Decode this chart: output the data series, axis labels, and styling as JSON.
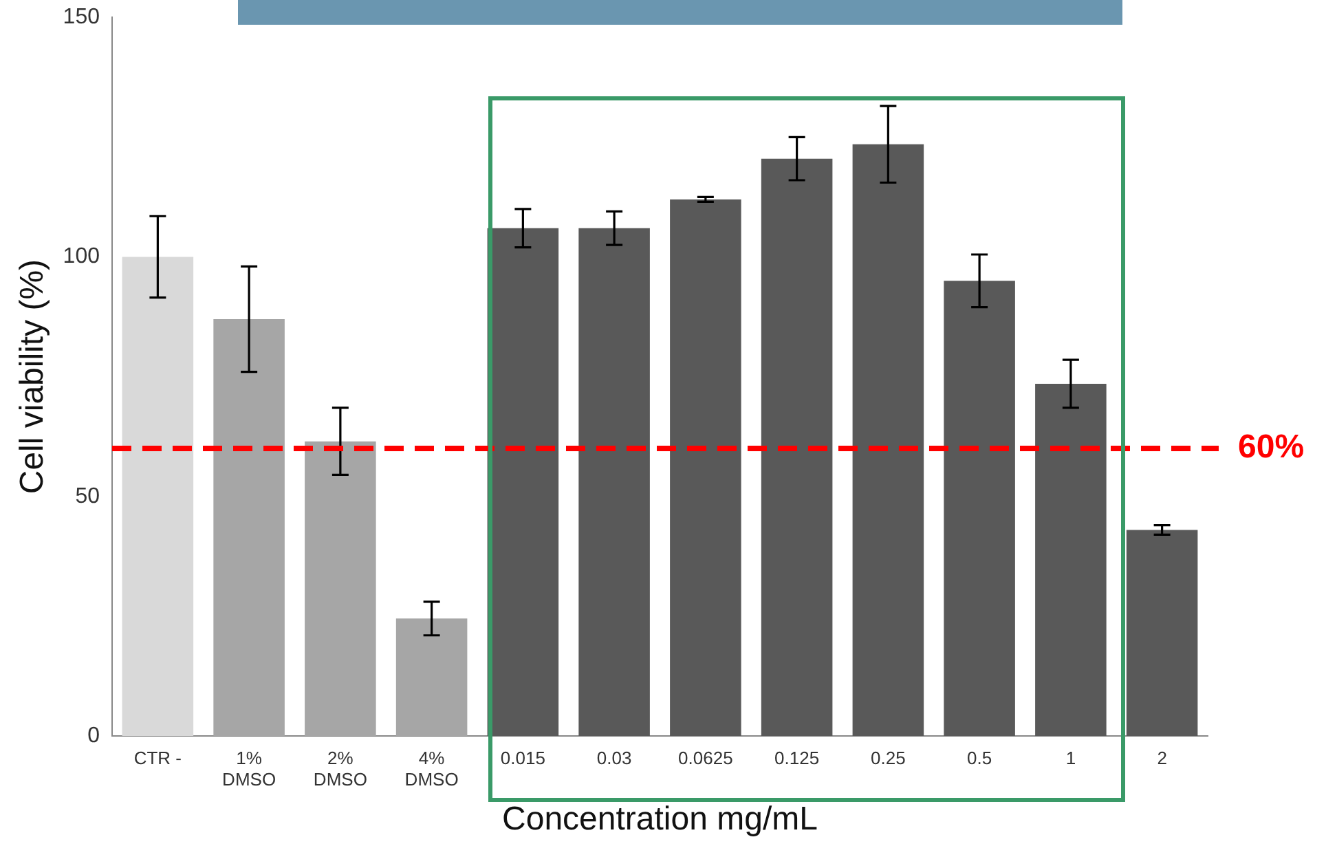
{
  "chart_data": {
    "type": "bar",
    "xlabel": "Concentration mg/mL",
    "ylabel": "Cell viability (%)",
    "categories": [
      "CTR -",
      "1%\nDMSO",
      "2%\nDMSO",
      "4%\nDMSO",
      "0.015",
      "0.03",
      "0.0625",
      "0.125",
      "0.25",
      "0.5",
      "1",
      "2"
    ],
    "values": [
      100,
      87,
      61.5,
      24.5,
      106,
      106,
      112,
      120.5,
      123.5,
      95,
      73.5,
      43
    ],
    "errors": [
      8.5,
      11,
      7,
      3.5,
      4,
      3.5,
      0.5,
      4.5,
      8,
      5.5,
      5,
      1
    ],
    "colors": [
      "#d9d9d9",
      "#a6a6a6",
      "#a6a6a6",
      "#a6a6a6",
      "#595959",
      "#595959",
      "#595959",
      "#595959",
      "#595959",
      "#595959",
      "#595959",
      "#595959"
    ],
    "ylim": [
      0,
      150
    ],
    "yticks": [
      0,
      50,
      100,
      150
    ],
    "ref_lines": [
      {
        "axis": "y",
        "value": 60,
        "label": "60%",
        "color": "#ff0000",
        "line_style": "dashed"
      }
    ],
    "grid": false,
    "legend": false
  }
}
